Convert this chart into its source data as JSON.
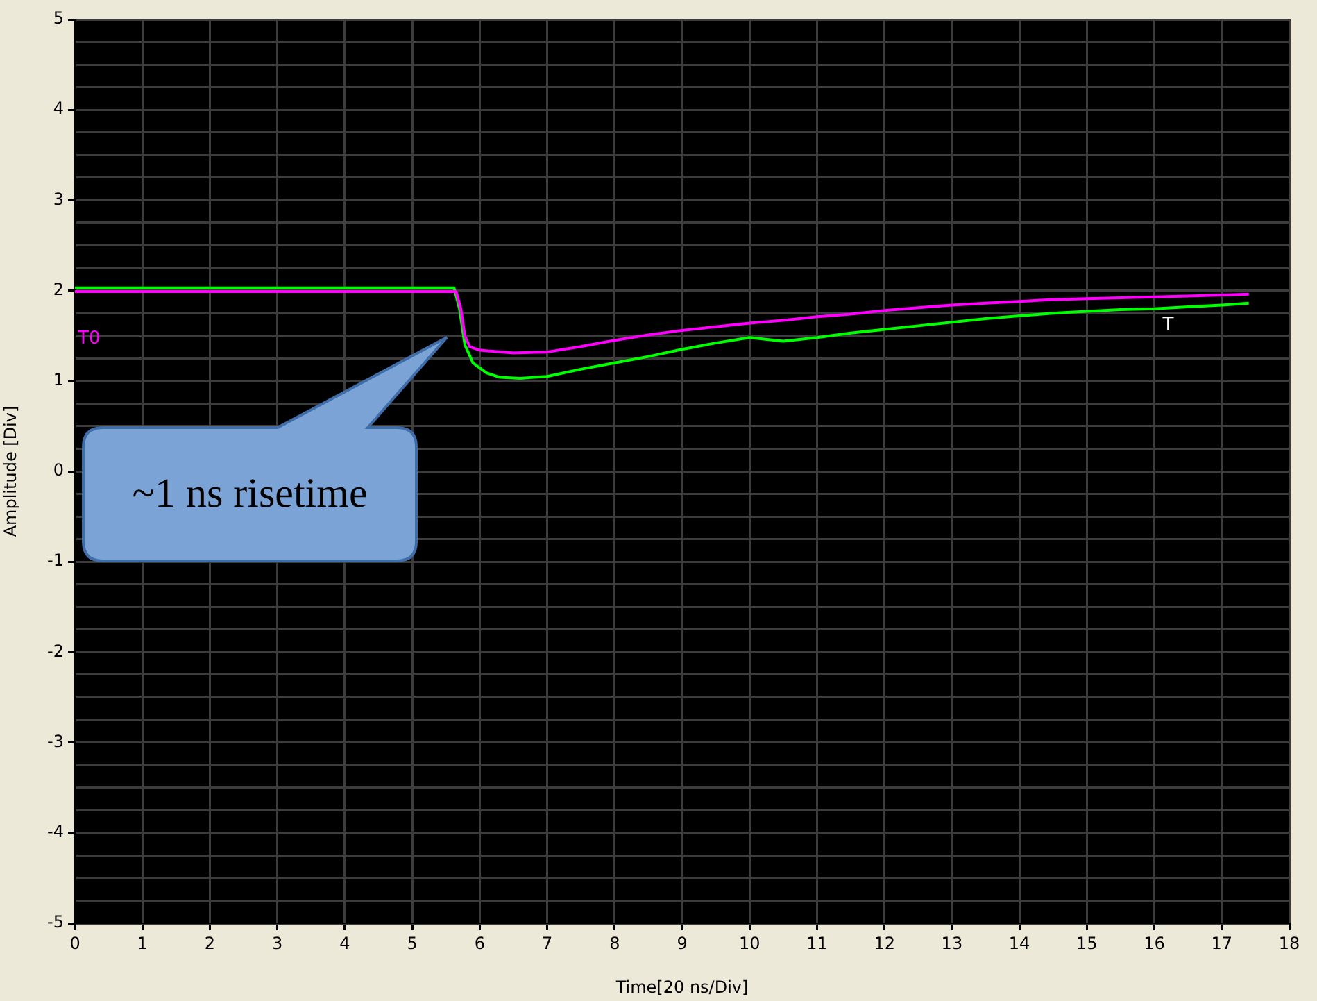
{
  "chart_data": {
    "type": "line",
    "xlabel": "Time[20 ns/Div]",
    "ylabel": "Amplitude [Div]",
    "xlim": [
      0,
      18
    ],
    "xticks": [
      0,
      1,
      2,
      3,
      4,
      5,
      6,
      7,
      8,
      9,
      10,
      11,
      12,
      13,
      14,
      15,
      16,
      17,
      18
    ],
    "ylim": [
      -5,
      5
    ],
    "yticks": [
      -5,
      {
        "value": -4.75,
        "label": null
      },
      {
        "value": -4.5,
        "label": null
      },
      {
        "value": -4.25,
        "label": null
      },
      -4,
      {
        "value": -3.75,
        "label": null
      },
      {
        "value": -3.5,
        "label": null
      },
      {
        "value": -3.25,
        "label": null
      },
      -3,
      {
        "value": -2.75,
        "label": null
      },
      {
        "value": -2.5,
        "label": null
      },
      {
        "value": -2.25,
        "label": null
      },
      -2,
      {
        "value": -1.75,
        "label": null
      },
      {
        "value": -1.5,
        "label": null
      },
      {
        "value": -1.25,
        "label": null
      },
      -1,
      {
        "value": -0.75,
        "label": null
      },
      {
        "value": -0.5,
        "label": null
      },
      {
        "value": -0.25,
        "label": null
      },
      0,
      {
        "value": 0.25,
        "label": null
      },
      {
        "value": 0.5,
        "label": null
      },
      {
        "value": 0.75,
        "label": null
      },
      1,
      {
        "value": 1.25,
        "label": null
      },
      {
        "value": 1.5,
        "label": null
      },
      {
        "value": 1.75,
        "label": null
      },
      2,
      {
        "value": 2.25,
        "label": null
      },
      {
        "value": 2.5,
        "label": null
      },
      {
        "value": 2.75,
        "label": null
      },
      3,
      {
        "value": 3.25,
        "label": null
      },
      {
        "value": 3.5,
        "label": null
      },
      {
        "value": 3.75,
        "label": null
      },
      4,
      {
        "value": 4.25,
        "label": null
      },
      {
        "value": 4.5,
        "label": null
      },
      {
        "value": 4.75,
        "label": null
      },
      5
    ],
    "grid": true,
    "legend": false,
    "marker": "none",
    "line_style": "solid",
    "series": [
      {
        "color": "#ff00ff",
        "x": [
          0,
          1,
          2,
          3,
          4,
          5,
          5.65,
          5.72,
          5.78,
          5.85,
          6,
          6.5,
          7,
          7.5,
          8,
          8.5,
          9,
          9.5,
          10,
          10.5,
          11,
          11.5,
          12,
          12.5,
          13,
          13.5,
          14,
          14.5,
          15,
          15.5,
          16,
          16.5,
          17,
          17.4
        ],
        "values": [
          1.99,
          1.99,
          1.99,
          1.99,
          1.99,
          1.99,
          1.99,
          1.8,
          1.5,
          1.38,
          1.34,
          1.31,
          1.32,
          1.38,
          1.45,
          1.51,
          1.56,
          1.6,
          1.64,
          1.67,
          1.71,
          1.74,
          1.78,
          1.81,
          1.84,
          1.86,
          1.88,
          1.9,
          1.91,
          1.92,
          1.93,
          1.94,
          1.95,
          1.96
        ]
      },
      {
        "color": "#00ff00",
        "x": [
          0,
          1,
          2,
          3,
          4,
          5,
          5.62,
          5.7,
          5.78,
          5.9,
          6.1,
          6.3,
          6.6,
          7,
          7.5,
          8,
          8.5,
          9,
          9.5,
          10,
          10.5,
          11,
          11.5,
          12,
          12.5,
          13,
          13.5,
          14,
          14.5,
          15,
          15.5,
          16,
          16.5,
          17,
          17.4
        ],
        "values": [
          2.03,
          2.03,
          2.03,
          2.03,
          2.03,
          2.03,
          2.03,
          1.8,
          1.4,
          1.2,
          1.09,
          1.04,
          1.03,
          1.05,
          1.13,
          1.2,
          1.27,
          1.35,
          1.42,
          1.48,
          1.44,
          1.48,
          1.53,
          1.57,
          1.61,
          1.65,
          1.69,
          1.72,
          1.75,
          1.77,
          1.79,
          1.8,
          1.82,
          1.84,
          1.86
        ]
      }
    ],
    "annotations": [
      "~1 ns risetime",
      "T0",
      {
        "text": "T",
        "x": 16,
        "y": 1.8
      }
    ]
  }
}
